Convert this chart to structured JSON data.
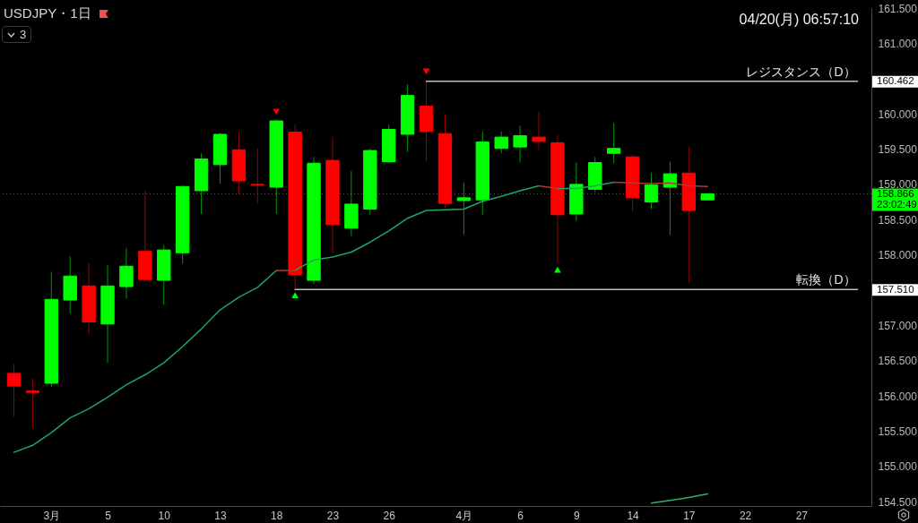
{
  "chart_data": {
    "type": "candlestick",
    "title": "USDJPY・1日",
    "categories": [
      null,
      null,
      "3月",
      null,
      null,
      "5",
      null,
      null,
      "10",
      null,
      null,
      "13",
      null,
      null,
      "18",
      null,
      null,
      "23",
      null,
      null,
      "26",
      null,
      null,
      null,
      "4月",
      null,
      null,
      "6",
      null,
      null,
      "9",
      null,
      null,
      "14",
      null,
      null,
      "17",
      null,
      null,
      "22",
      null,
      null,
      "27",
      null,
      null,
      null
    ],
    "ohlc": [
      [
        156.32,
        156.45,
        155.71,
        156.14
      ],
      [
        156.07,
        156.25,
        155.55,
        156.05
      ],
      [
        156.18,
        157.76,
        156.13,
        157.37
      ],
      [
        157.36,
        157.98,
        157.17,
        157.7
      ],
      [
        157.56,
        157.88,
        156.88,
        157.05
      ],
      [
        157.02,
        157.86,
        156.47,
        157.56
      ],
      [
        157.55,
        158.1,
        157.38,
        157.84
      ],
      [
        158.05,
        158.91,
        157.64,
        157.65
      ],
      [
        157.64,
        158.14,
        157.29,
        158.07
      ],
      [
        158.03,
        158.98,
        157.88,
        158.97
      ],
      [
        158.91,
        159.44,
        158.58,
        159.36
      ],
      [
        159.28,
        159.73,
        159.01,
        159.71
      ],
      [
        159.49,
        159.75,
        158.86,
        159.05
      ],
      [
        159.0,
        159.51,
        158.73,
        158.99
      ],
      [
        158.96,
        159.92,
        158.58,
        159.9
      ],
      [
        159.74,
        159.85,
        157.51,
        157.72
      ],
      [
        157.64,
        159.39,
        157.59,
        159.3
      ],
      [
        159.34,
        159.67,
        158.03,
        158.43
      ],
      [
        158.38,
        159.19,
        158.27,
        158.72
      ],
      [
        158.65,
        159.51,
        158.57,
        159.48
      ],
      [
        159.32,
        159.85,
        159.3,
        159.78
      ],
      [
        159.71,
        160.42,
        159.46,
        160.26
      ],
      [
        160.11,
        160.462,
        159.33,
        159.75
      ],
      [
        159.72,
        159.99,
        158.67,
        158.73
      ],
      [
        158.77,
        159.03,
        158.29,
        158.81
      ],
      [
        158.78,
        159.75,
        158.57,
        159.6
      ],
      [
        159.51,
        159.75,
        159.44,
        159.67
      ],
      [
        159.53,
        159.83,
        159.31,
        159.69
      ],
      [
        159.67,
        160.03,
        159.49,
        159.61
      ],
      [
        159.59,
        159.7,
        157.89,
        158.57
      ],
      [
        158.58,
        159.31,
        158.48,
        159.0
      ],
      [
        158.93,
        159.39,
        158.89,
        159.31
      ],
      [
        159.44,
        159.87,
        159.3,
        159.51
      ],
      [
        159.39,
        159.42,
        158.62,
        158.81
      ],
      [
        158.75,
        159.16,
        158.65,
        158.99
      ],
      [
        158.96,
        159.32,
        158.28,
        159.15
      ],
      [
        159.16,
        159.54,
        157.61,
        158.63
      ],
      [
        158.78,
        158.87,
        158.77,
        158.866
      ],
      null,
      null,
      null,
      null,
      null,
      null,
      null,
      null
    ],
    "colors": [
      "#ff0000",
      "#ff0000",
      "#00ff00",
      "#00ff00",
      "#ff0000",
      "#00ff00",
      "#00ff00",
      "#ff0000",
      "#00ff00",
      "#00ff00",
      "#00ff00",
      "#00ff00",
      "#ff0000",
      "#ff0000",
      "#00ff00",
      "#ff0000",
      "#00ff00",
      "#ff0000",
      "#00ff00",
      "#00ff00",
      "#00ff00",
      "#00ff00",
      "#ff0000",
      "#ff0000",
      "#00ff00",
      "#00ff00",
      "#00ff00",
      "#00ff00",
      "#ff0000",
      "#ff0000",
      "#00ff00",
      "#00ff00",
      "#00ff00",
      "#ff0000",
      "#00ff00",
      "#00ff00",
      "#ff0000",
      "#00ff00",
      null,
      null,
      null,
      null,
      null,
      null,
      null,
      null
    ],
    "series": [
      {
        "type": "line",
        "color": "#1fa463",
        "values": [
          155.2,
          155.3,
          155.48,
          155.69,
          155.82,
          155.98,
          156.16,
          156.3,
          156.47,
          156.7,
          156.95,
          157.22,
          157.4,
          157.54,
          157.78,
          null,
          null,
          null,
          null,
          null,
          null,
          null,
          null,
          null,
          null,
          null,
          null,
          null,
          null,
          158.94,
          158.94,
          158.98,
          159.03,
          null,
          null,
          null,
          null,
          null,
          null,
          null,
          null,
          null,
          null,
          null,
          null,
          null
        ]
      },
      {
        "type": "line",
        "color": "#1fa463",
        "values": [
          null,
          null,
          null,
          null,
          null,
          null,
          null,
          null,
          null,
          null,
          null,
          null,
          null,
          null,
          null,
          157.78,
          157.93,
          157.97,
          158.04,
          158.18,
          158.34,
          158.52,
          158.63,
          158.64,
          158.65,
          158.76,
          158.83,
          158.91,
          158.98,
          null,
          null,
          null,
          null,
          null,
          null,
          null,
          null,
          null,
          null,
          null,
          null,
          null,
          null,
          null,
          null,
          null
        ]
      },
      {
        "type": "line",
        "color": "#b03a3a",
        "values": [
          null,
          null,
          null,
          null,
          null,
          null,
          null,
          null,
          null,
          null,
          null,
          null,
          null,
          null,
          157.78,
          157.78,
          null,
          null,
          null,
          null,
          null,
          null,
          null,
          null,
          null,
          null,
          null,
          null,
          158.98,
          158.94,
          null,
          null,
          159.03,
          159.02,
          159.01,
          159.02,
          158.98,
          158.97,
          null,
          null,
          null,
          null,
          null,
          null,
          null,
          null
        ]
      },
      {
        "type": "line",
        "color": "#2cb463",
        "values": [
          null,
          null,
          null,
          null,
          null,
          null,
          null,
          null,
          null,
          null,
          null,
          null,
          null,
          null,
          null,
          null,
          null,
          null,
          null,
          null,
          null,
          null,
          null,
          null,
          null,
          null,
          null,
          null,
          null,
          null,
          null,
          null,
          null,
          null,
          154.48,
          154.52,
          154.56,
          154.61,
          null,
          null,
          null,
          null,
          null,
          null,
          null,
          null
        ]
      },
      {
        "type": "line",
        "name": "レジスタンス（D）",
        "color": "#bdbdbd",
        "values": [
          null,
          null,
          null,
          null,
          null,
          null,
          null,
          null,
          null,
          null,
          null,
          null,
          null,
          null,
          null,
          null,
          null,
          null,
          null,
          null,
          null,
          null,
          160.462,
          160.462,
          160.462,
          160.462,
          160.462,
          160.462,
          160.462,
          160.462,
          160.462,
          160.462,
          160.462,
          160.462,
          160.462,
          160.462,
          160.462,
          160.462,
          160.462,
          160.462,
          160.462,
          160.462,
          160.462,
          160.462,
          160.462,
          160.462
        ],
        "value_labels": [
          null,
          null,
          null,
          null,
          null,
          null,
          null,
          null,
          null,
          null,
          null,
          null,
          null,
          null,
          null,
          null,
          null,
          null,
          null,
          null,
          null,
          null,
          null,
          null,
          null,
          null,
          null,
          null,
          null,
          null,
          null,
          null,
          null,
          null,
          null,
          null,
          null,
          null,
          null,
          null,
          null,
          null,
          null,
          null,
          null,
          "160.462"
        ]
      },
      {
        "type": "line",
        "name": "転換（D）",
        "color": "#bdbdbd",
        "values": [
          null,
          null,
          null,
          null,
          null,
          null,
          null,
          null,
          null,
          null,
          null,
          null,
          null,
          null,
          null,
          157.51,
          157.51,
          157.51,
          157.51,
          157.51,
          157.51,
          157.51,
          157.51,
          157.51,
          157.51,
          157.51,
          157.51,
          157.51,
          157.51,
          157.51,
          157.51,
          157.51,
          157.51,
          157.51,
          157.51,
          157.51,
          157.51,
          157.51,
          157.51,
          157.51,
          157.51,
          157.51,
          157.51,
          157.51,
          157.51,
          157.51
        ],
        "value_labels": [
          null,
          null,
          null,
          null,
          null,
          null,
          null,
          null,
          null,
          null,
          null,
          null,
          null,
          null,
          null,
          null,
          null,
          null,
          null,
          null,
          null,
          null,
          null,
          null,
          null,
          null,
          null,
          null,
          null,
          null,
          null,
          null,
          null,
          null,
          null,
          null,
          null,
          null,
          null,
          null,
          null,
          null,
          null,
          null,
          null,
          "157.510"
        ]
      },
      {
        "type": "scatter",
        "marker": "triangle-down",
        "color": "#ff0000",
        "values": [
          null,
          null,
          null,
          null,
          null,
          null,
          null,
          null,
          null,
          null,
          null,
          null,
          null,
          null,
          160.03,
          null,
          null,
          null,
          null,
          null,
          null,
          null,
          160.6,
          null,
          null,
          null,
          null,
          null,
          null,
          null,
          null,
          null,
          null,
          null,
          null,
          null,
          null,
          null,
          null,
          null,
          null,
          null,
          null,
          null,
          null,
          null
        ]
      },
      {
        "type": "scatter",
        "marker": "triangle",
        "color": "#00ff00",
        "values": [
          null,
          null,
          null,
          null,
          null,
          null,
          null,
          null,
          null,
          null,
          null,
          null,
          null,
          null,
          null,
          157.43,
          null,
          null,
          null,
          null,
          null,
          null,
          null,
          null,
          null,
          null,
          null,
          null,
          null,
          157.79,
          null,
          null,
          null,
          null,
          null,
          null,
          null,
          null,
          null,
          null,
          null,
          null,
          null,
          null,
          null,
          null
        ]
      }
    ],
    "ylim": [
      154.44,
      161.5
    ],
    "yticks": [
      {
        "value": 161.5,
        "label": "161.500"
      },
      {
        "value": 161,
        "label": "161.000"
      },
      {
        "value": 160,
        "label": "160.000"
      },
      {
        "value": 159.5,
        "label": "159.500"
      },
      {
        "value": 159,
        "label": "159.000"
      },
      {
        "value": 158.5,
        "label": "158.500"
      },
      {
        "value": 158,
        "label": "158.000"
      },
      {
        "value": 157,
        "label": "157.000"
      },
      {
        "value": 156.5,
        "label": "156.500"
      },
      {
        "value": 156,
        "label": "156.000"
      },
      {
        "value": 155.5,
        "label": "155.500"
      },
      {
        "value": 155,
        "label": "155.000"
      },
      {
        "value": 154.5,
        "label": "154.500"
      }
    ],
    "ref_lines": [
      {
        "axis": "y",
        "value": 158.866,
        "label": "158.866",
        "color": "#00ff00",
        "line_style": "dotted"
      }
    ],
    "annotations": [
      "04/20(月) 06:57:10",
      "3",
      "23:02:49"
    ]
  }
}
